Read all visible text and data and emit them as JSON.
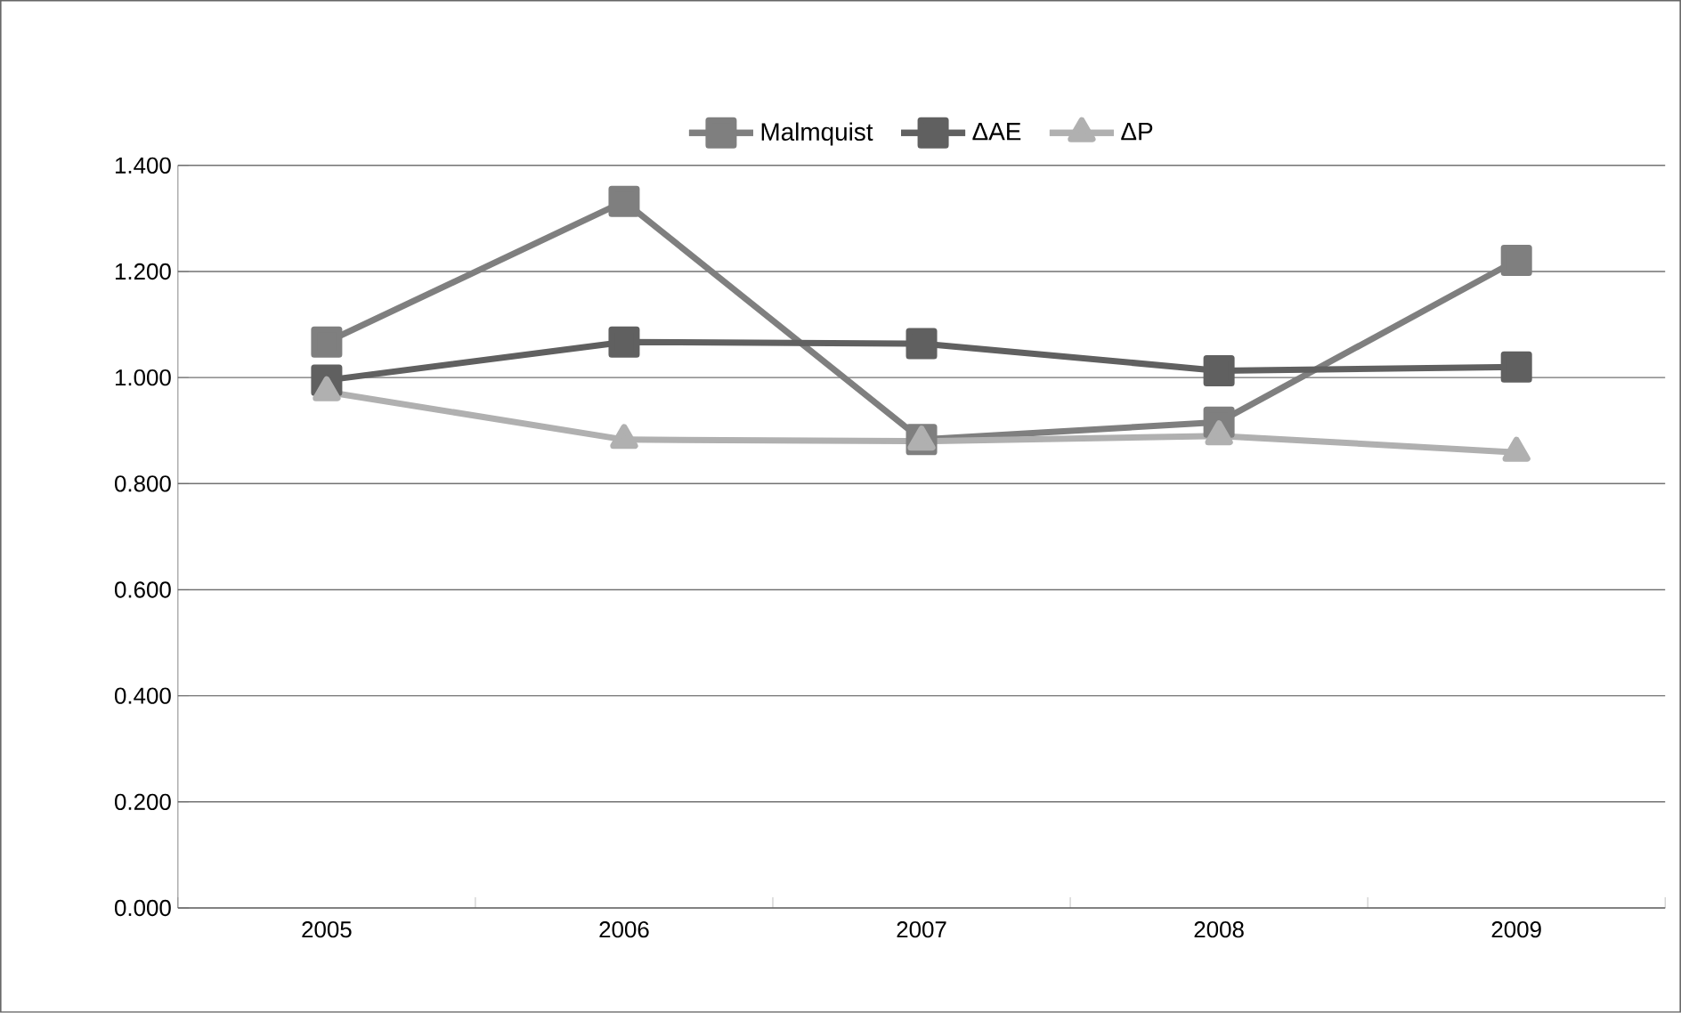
{
  "chart_data": {
    "type": "line",
    "categories": [
      "2005",
      "2006",
      "2007",
      "2008",
      "2009"
    ],
    "series": [
      {
        "name": "Malmquist",
        "color": "#7f7f7f",
        "marker": "square",
        "values": [
          1.067,
          1.332,
          0.883,
          0.916,
          1.221
        ]
      },
      {
        "name": "ΔAE",
        "color": "#606060",
        "marker": "square",
        "values": [
          0.995,
          1.067,
          1.064,
          1.013,
          1.02
        ]
      },
      {
        "name": "ΔP",
        "color": "#b0b0b0",
        "marker": "triangle",
        "values": [
          0.973,
          0.883,
          0.88,
          0.89,
          0.859
        ]
      }
    ],
    "ylim": [
      0,
      1.4
    ],
    "yticks": [
      {
        "value": 0,
        "label": "0.000"
      },
      {
        "value": 0.2,
        "label": "0.200"
      },
      {
        "value": 0.4,
        "label": "0.400"
      },
      {
        "value": 0.6,
        "label": "0.600"
      },
      {
        "value": 0.8,
        "label": "0.800"
      },
      {
        "value": 1.0,
        "label": "1.000"
      },
      {
        "value": 1.2,
        "label": "1.200"
      },
      {
        "value": 1.4,
        "label": "1.400"
      }
    ],
    "grid": "y",
    "legend": "top",
    "line_style": "solid"
  }
}
